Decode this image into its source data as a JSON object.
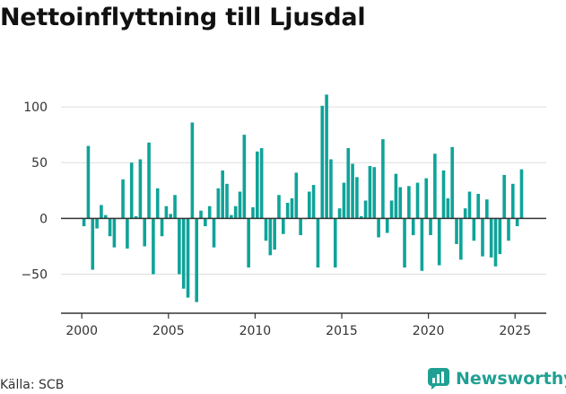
{
  "title": "Nettoinflyttning till Ljusdal",
  "source": "Källa: SCB",
  "brand": {
    "name": "Newsworthy",
    "icon": "newsworthy-logo-icon"
  },
  "colors": {
    "bar": "#0fa399",
    "grid": "#dddddd",
    "axis": "#333333",
    "brand": "#20a093"
  },
  "chart_data": {
    "type": "bar",
    "title": "Nettoinflyttning till Ljusdal",
    "xlabel": "",
    "ylabel": "",
    "xlim": [
      1998.8,
      2026.8
    ],
    "ylim": [
      -85,
      125
    ],
    "x_ticks": [
      2000,
      2005,
      2010,
      2015,
      2020,
      2025
    ],
    "y_ticks": [
      -50,
      0,
      50,
      100
    ],
    "grid": true,
    "series": [
      {
        "x": [
          "2000-01",
          "2000-02",
          "2000-03",
          "2000-04",
          "2001-01",
          "2001-02",
          "2001-03",
          "2001-04",
          "2002-01",
          "2002-02",
          "2002-03",
          "2002-04",
          "2003-01",
          "2003-02",
          "2003-03",
          "2003-04",
          "2004-01",
          "2004-02",
          "2004-03",
          "2004-04",
          "2005-01",
          "2005-02",
          "2005-03",
          "2005-04",
          "2006-01",
          "2006-02",
          "2006-03",
          "2006-04",
          "2007-01",
          "2007-02",
          "2007-03",
          "2007-04",
          "2008-01",
          "2008-02",
          "2008-03",
          "2008-04",
          "2009-01",
          "2009-02",
          "2009-03",
          "2009-04",
          "2010-01",
          "2010-02",
          "2010-03",
          "2010-04",
          "2011-01",
          "2011-02",
          "2011-03",
          "2011-04",
          "2012-01",
          "2012-02",
          "2012-03",
          "2012-04",
          "2013-01",
          "2013-02",
          "2013-03",
          "2013-04",
          "2014-01",
          "2014-02",
          "2014-03",
          "2014-04",
          "2015-01",
          "2015-02",
          "2015-03",
          "2015-04",
          "2016-01",
          "2016-02",
          "2016-03",
          "2016-04",
          "2017-01",
          "2017-02",
          "2017-03",
          "2017-04",
          "2018-01",
          "2018-02",
          "2018-03",
          "2018-04",
          "2019-01",
          "2019-02",
          "2019-03",
          "2019-04",
          "2020-01",
          "2020-02",
          "2020-03",
          "2020-04",
          "2021-01",
          "2021-02",
          "2021-03",
          "2021-04",
          "2022-01",
          "2022-02",
          "2022-03",
          "2022-04",
          "2023-01",
          "2023-02",
          "2023-03",
          "2023-04",
          "2024-01",
          "2024-02",
          "2024-03",
          "2024-04",
          "2025-01",
          "2025-02"
        ],
        "values": [
          -7,
          65,
          -46,
          -9,
          12,
          3,
          -16,
          -26,
          0,
          35,
          -27,
          50,
          2,
          53,
          -25,
          68,
          -50,
          27,
          -16,
          11,
          4,
          21,
          -50,
          -63,
          -71,
          86,
          -75,
          7,
          -7,
          11,
          -26,
          27,
          43,
          31,
          3,
          11,
          24,
          75,
          -44,
          10,
          60,
          63,
          -20,
          -33,
          -28,
          21,
          -14,
          14,
          18,
          41,
          -15,
          0,
          24,
          30,
          -44,
          101,
          111,
          53,
          -44,
          9,
          32,
          63,
          49,
          37,
          2,
          16,
          47,
          46,
          -17,
          71,
          -13,
          16,
          40,
          28,
          -44,
          29,
          -15,
          32,
          -47,
          36,
          -15,
          58,
          -42,
          43,
          18,
          64,
          -23,
          -37,
          9,
          24,
          -20,
          22,
          -34,
          17,
          -35,
          -43,
          -32,
          39,
          -20,
          31,
          -7,
          44
        ]
      }
    ]
  }
}
